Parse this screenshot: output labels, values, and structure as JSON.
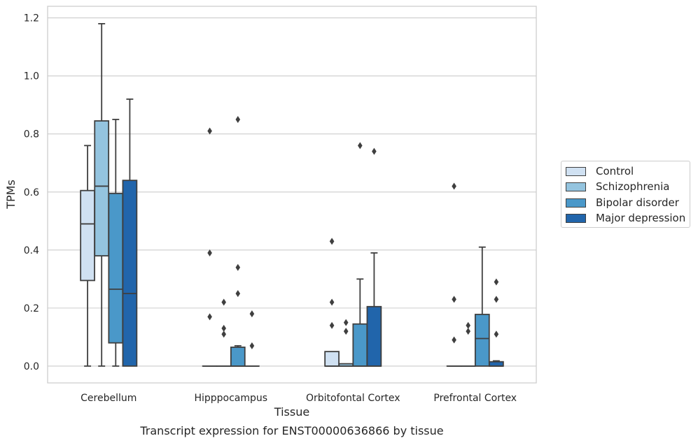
{
  "chart_data": {
    "type": "box",
    "title": "Transcript expression for ENST00000636866 by tissue",
    "xlabel": "Tissue",
    "ylabel": "TPMs",
    "ylim": [
      -0.058,
      1.24
    ],
    "yticks": [
      0.0,
      0.2,
      0.4,
      0.6,
      0.8,
      1.0,
      1.2
    ],
    "ytick_labels": [
      "0.0",
      "0.2",
      "0.4",
      "0.6",
      "0.8",
      "1.0",
      "1.2"
    ],
    "grid": "horizontal",
    "legend_placement": "outside right",
    "categories": [
      "Cerebellum",
      "Hipppocampus",
      "Orbitofontal Cortex",
      "Prefrontal Cortex"
    ],
    "series": [
      {
        "name": "Control",
        "color": "#d0e1f2",
        "boxes": [
          {
            "whislo": 0.0,
            "q1": 0.295,
            "med": 0.49,
            "q3": 0.605,
            "whishi": 0.76,
            "fliers": []
          },
          {
            "whislo": 0.0,
            "q1": 0.0,
            "med": 0.0,
            "q3": 0.0,
            "whishi": 0.0,
            "fliers": [
              0.81,
              0.39,
              0.17
            ]
          },
          {
            "whislo": 0.0,
            "q1": 0.0,
            "med": 0.0,
            "q3": 0.05,
            "whishi": 0.05,
            "fliers": [
              0.43,
              0.22,
              0.14
            ]
          },
          {
            "whislo": 0.0,
            "q1": 0.0,
            "med": 0.0,
            "q3": 0.0,
            "whishi": 0.0,
            "fliers": [
              0.62,
              0.23,
              0.09
            ]
          }
        ]
      },
      {
        "name": "Schizophrenia",
        "color": "#94c4df",
        "boxes": [
          {
            "whislo": 0.0,
            "q1": 0.38,
            "med": 0.62,
            "q3": 0.845,
            "whishi": 1.18,
            "fliers": []
          },
          {
            "whislo": 0.0,
            "q1": 0.0,
            "med": 0.0,
            "q3": 0.0,
            "whishi": 0.0,
            "fliers": [
              0.22,
              0.13,
              0.11
            ]
          },
          {
            "whislo": 0.0,
            "q1": 0.0,
            "med": 0.0,
            "q3": 0.008,
            "whishi": 0.008,
            "fliers": [
              0.15,
              0.12
            ]
          },
          {
            "whislo": 0.0,
            "q1": 0.0,
            "med": 0.0,
            "q3": 0.0,
            "whishi": 0.0,
            "fliers": [
              0.14,
              0.12
            ]
          }
        ]
      },
      {
        "name": "Bipolar disorder",
        "color": "#4a98c9",
        "boxes": [
          {
            "whislo": 0.0,
            "q1": 0.08,
            "med": 0.265,
            "q3": 0.595,
            "whishi": 0.85,
            "fliers": []
          },
          {
            "whislo": 0.0,
            "q1": 0.0,
            "med": 0.0,
            "q3": 0.065,
            "whishi": 0.07,
            "fliers": [
              0.85,
              0.34,
              0.25
            ]
          },
          {
            "whislo": 0.0,
            "q1": 0.0,
            "med": 0.0,
            "q3": 0.145,
            "whishi": 0.3,
            "fliers": [
              0.76
            ]
          },
          {
            "whislo": 0.0,
            "q1": 0.0,
            "med": 0.095,
            "q3": 0.178,
            "whishi": 0.41,
            "fliers": []
          }
        ]
      },
      {
        "name": "Major depression",
        "color": "#2165ab",
        "boxes": [
          {
            "whislo": 0.0,
            "q1": 0.0,
            "med": 0.25,
            "q3": 0.64,
            "whishi": 0.92,
            "fliers": []
          },
          {
            "whislo": 0.0,
            "q1": 0.0,
            "med": 0.0,
            "q3": 0.0,
            "whishi": 0.0,
            "fliers": [
              0.18,
              0.07
            ]
          },
          {
            "whislo": 0.0,
            "q1": 0.0,
            "med": 0.0,
            "q3": 0.205,
            "whishi": 0.39,
            "fliers": [
              0.74
            ]
          },
          {
            "whislo": 0.0,
            "q1": 0.0,
            "med": 0.0,
            "q3": 0.015,
            "whishi": 0.018,
            "fliers": [
              0.29,
              0.23,
              0.11
            ]
          }
        ]
      }
    ]
  }
}
